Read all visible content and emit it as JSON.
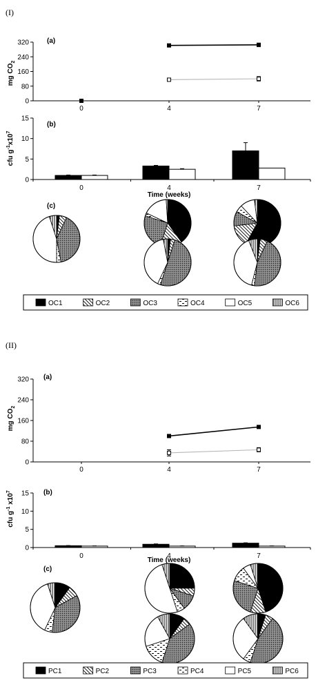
{
  "panels": [
    {
      "id": "I",
      "label": "(I)",
      "co2": {
        "sublabel": "(a)",
        "ylabel": "mg CO",
        "ylabel_sub": "2",
        "yticks": [
          0,
          80,
          160,
          240,
          320
        ],
        "ylim": [
          0,
          320
        ],
        "xticks": [
          "0",
          "4",
          "7"
        ]
      },
      "cfu": {
        "sublabel": "(b)",
        "ylabel": "cfu g",
        "ylabel_sup1": "-1",
        "ylabel_mid": "x10",
        "ylabel_sup2": "7",
        "yticks": [
          0,
          5,
          10,
          15
        ],
        "ylim": [
          0,
          15
        ],
        "xticks": [
          "0",
          "4",
          "7"
        ],
        "xlabel": "Time (weeks)"
      },
      "pie_label": "(c)",
      "legend": [
        "OC1",
        "OC2",
        "OC3",
        "OC4",
        "OC5",
        "OC6"
      ]
    },
    {
      "id": "II",
      "label": "(II)",
      "co2": {
        "sublabel": "(a)",
        "ylabel": "mg CO",
        "ylabel_sub": "2",
        "yticks": [
          0,
          80,
          160,
          240,
          320
        ],
        "ylim": [
          0,
          320
        ],
        "xticks": [
          "0",
          "4",
          "7"
        ]
      },
      "cfu": {
        "sublabel": "(b)",
        "ylabel": "cfu g",
        "ylabel_sup1": "-1",
        "ylabel_mid": " x10",
        "ylabel_sup2": "7",
        "yticks": [
          0,
          5,
          10,
          15
        ],
        "ylim": [
          0,
          15
        ],
        "xticks": [
          "0",
          "4",
          "7"
        ],
        "xlabel": "Time (weeks)"
      },
      "pie_label": "(c)",
      "legend": [
        "PC1",
        "PC2",
        "PC3",
        "PC4",
        "PC5",
        "PC6"
      ]
    }
  ],
  "chart_data": [
    {
      "type": "line",
      "panel": "I(a)",
      "x": [
        0,
        4,
        7
      ],
      "ylim": [
        0,
        320
      ],
      "series": [
        {
          "style": "filled-square",
          "points": [
            [
              0,
              0
            ],
            [
              4,
              302
            ],
            [
              7,
              305
            ]
          ],
          "errors": [
            0,
            4,
            10
          ]
        },
        {
          "style": "open-square",
          "points": [
            [
              4,
              115
            ],
            [
              7,
              120
            ]
          ],
          "errors": [
            6,
            12
          ]
        }
      ]
    },
    {
      "type": "bar",
      "panel": "I(b)",
      "categories": [
        "0",
        "4",
        "7"
      ],
      "ylim": [
        0,
        15
      ],
      "series": [
        {
          "style": "filled",
          "values": [
            1.0,
            3.3,
            7.0
          ],
          "errors": [
            0.1,
            0.15,
            2.0
          ]
        },
        {
          "style": "open",
          "values": [
            1.0,
            2.5,
            2.8
          ],
          "errors": [
            0.1,
            0.15,
            0
          ]
        }
      ]
    },
    {
      "type": "pie",
      "panel": "I(c)",
      "pies": [
        {
          "week": "0",
          "group": "single",
          "slices": [
            {
              "cat": "OC1",
              "value": 0.02
            },
            {
              "cat": "OC2",
              "value": 0.05
            },
            {
              "cat": "OC3",
              "value": 0.4
            },
            {
              "cat": "OC4",
              "value": 0.03
            },
            {
              "cat": "OC5",
              "value": 0.45
            },
            {
              "cat": "OC6",
              "value": 0.05
            }
          ]
        },
        {
          "week": "4",
          "group": "top",
          "slices": [
            {
              "cat": "OC1",
              "value": 0.4
            },
            {
              "cat": "OC2",
              "value": 0.15
            },
            {
              "cat": "OC3",
              "value": 0.25
            },
            {
              "cat": "OC4",
              "value": 0.02
            },
            {
              "cat": "OC5",
              "value": 0.17
            },
            {
              "cat": "OC6",
              "value": 0.01
            }
          ]
        },
        {
          "week": "7",
          "group": "top",
          "slices": [
            {
              "cat": "OC1",
              "value": 0.58
            },
            {
              "cat": "OC2",
              "value": 0.15
            },
            {
              "cat": "OC3",
              "value": 0.1
            },
            {
              "cat": "OC4",
              "value": 0.05
            },
            {
              "cat": "OC5",
              "value": 0.1
            },
            {
              "cat": "OC6",
              "value": 0.02
            }
          ]
        },
        {
          "week": "4",
          "group": "bottom",
          "slices": [
            {
              "cat": "OC1",
              "value": 0.02
            },
            {
              "cat": "OC2",
              "value": 0.03
            },
            {
              "cat": "OC3",
              "value": 0.5
            },
            {
              "cat": "OC4",
              "value": 0.02
            },
            {
              "cat": "OC5",
              "value": 0.4
            },
            {
              "cat": "OC6",
              "value": 0.03
            }
          ]
        },
        {
          "week": "7",
          "group": "bottom",
          "slices": [
            {
              "cat": "OC1",
              "value": 0.02
            },
            {
              "cat": "OC2",
              "value": 0.05
            },
            {
              "cat": "OC3",
              "value": 0.45
            },
            {
              "cat": "OC4",
              "value": 0.02
            },
            {
              "cat": "OC5",
              "value": 0.4
            },
            {
              "cat": "OC6",
              "value": 0.06
            }
          ]
        }
      ]
    },
    {
      "type": "line",
      "panel": "II(a)",
      "x": [
        0,
        4,
        7
      ],
      "ylim": [
        0,
        320
      ],
      "series": [
        {
          "style": "filled-square",
          "points": [
            [
              4,
              100
            ],
            [
              7,
              135
            ]
          ],
          "errors": [
            3,
            3
          ]
        },
        {
          "style": "open-square",
          "points": [
            [
              4,
              35
            ],
            [
              7,
              47
            ]
          ],
          "errors": [
            12,
            8
          ]
        }
      ]
    },
    {
      "type": "bar",
      "panel": "II(b)",
      "categories": [
        "0",
        "4",
        "7"
      ],
      "ylim": [
        0,
        15
      ],
      "series": [
        {
          "style": "filled",
          "values": [
            0.5,
            0.9,
            1.2
          ],
          "errors": [
            0.05,
            0.1,
            0.1
          ]
        },
        {
          "style": "open",
          "values": [
            0.4,
            0.4,
            0.4
          ],
          "errors": [
            0.05,
            0.05,
            0.05
          ]
        }
      ]
    },
    {
      "type": "pie",
      "panel": "II(c)",
      "pies": [
        {
          "week": "0",
          "group": "single",
          "slices": [
            {
              "cat": "PC1",
              "value": 0.1
            },
            {
              "cat": "PC2",
              "value": 0.07
            },
            {
              "cat": "PC3",
              "value": 0.35
            },
            {
              "cat": "PC4",
              "value": 0.05
            },
            {
              "cat": "PC5",
              "value": 0.38
            },
            {
              "cat": "PC6",
              "value": 0.05
            }
          ]
        },
        {
          "week": "4",
          "group": "top",
          "slices": [
            {
              "cat": "PC1",
              "value": 0.25
            },
            {
              "cat": "PC2",
              "value": 0.05
            },
            {
              "cat": "PC3",
              "value": 0.1
            },
            {
              "cat": "PC4",
              "value": 0.05
            },
            {
              "cat": "PC5",
              "value": 0.5
            },
            {
              "cat": "PC6",
              "value": 0.05
            }
          ]
        },
        {
          "week": "7",
          "group": "top",
          "slices": [
            {
              "cat": "PC1",
              "value": 0.45
            },
            {
              "cat": "PC2",
              "value": 0.1
            },
            {
              "cat": "PC3",
              "value": 0.25
            },
            {
              "cat": "PC4",
              "value": 0.1
            },
            {
              "cat": "PC5",
              "value": 0.05
            },
            {
              "cat": "PC6",
              "value": 0.05
            }
          ]
        },
        {
          "week": "4",
          "group": "bottom",
          "slices": [
            {
              "cat": "PC1",
              "value": 0.1
            },
            {
              "cat": "PC2",
              "value": 0.05
            },
            {
              "cat": "PC3",
              "value": 0.4
            },
            {
              "cat": "PC4",
              "value": 0.15
            },
            {
              "cat": "PC5",
              "value": 0.22
            },
            {
              "cat": "PC6",
              "value": 0.08
            }
          ]
        },
        {
          "week": "7",
          "group": "bottom",
          "slices": [
            {
              "cat": "PC1",
              "value": 0.05
            },
            {
              "cat": "PC2",
              "value": 0.05
            },
            {
              "cat": "PC3",
              "value": 0.45
            },
            {
              "cat": "PC4",
              "value": 0.05
            },
            {
              "cat": "PC5",
              "value": 0.3
            },
            {
              "cat": "PC6",
              "value": 0.1
            }
          ]
        }
      ]
    }
  ]
}
